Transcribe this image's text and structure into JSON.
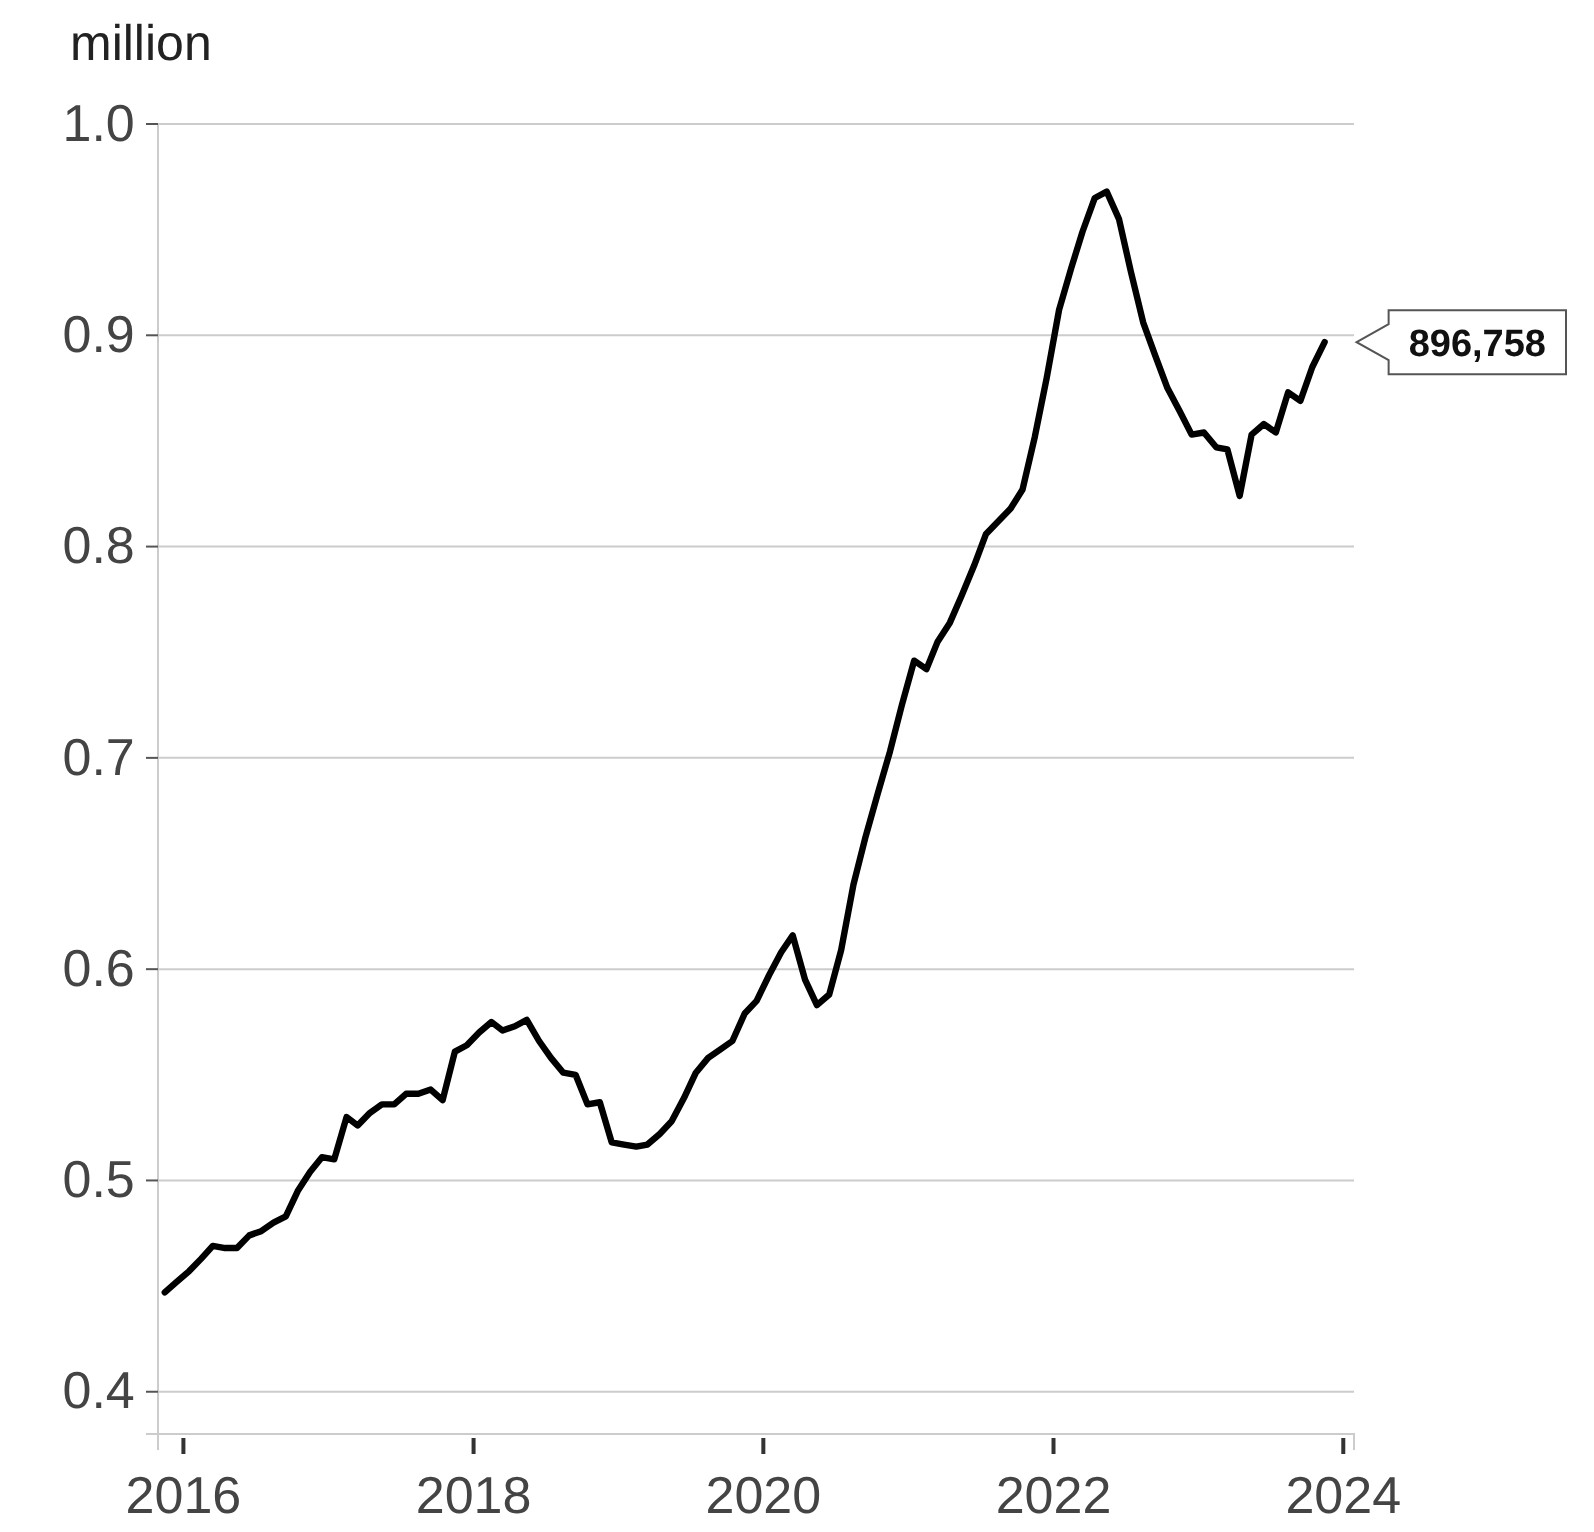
{
  "chart_data": {
    "type": "line",
    "ylabel": "million",
    "x": [
      "2015-11-15",
      "2015-12-15",
      "2016-01-15",
      "2016-02-15",
      "2016-03-15",
      "2016-04-15",
      "2016-05-15",
      "2016-06-15",
      "2016-07-15",
      "2016-08-15",
      "2016-09-15",
      "2016-10-15",
      "2016-11-15",
      "2016-12-15",
      "2017-01-15",
      "2017-02-15",
      "2017-03-15",
      "2017-04-15",
      "2017-05-15",
      "2017-06-15",
      "2017-07-15",
      "2017-08-15",
      "2017-09-15",
      "2017-10-15",
      "2017-11-15",
      "2017-12-15",
      "2018-01-15",
      "2018-02-15",
      "2018-03-15",
      "2018-04-15",
      "2018-05-15",
      "2018-06-15",
      "2018-07-15",
      "2018-08-15",
      "2018-09-15",
      "2018-10-15",
      "2018-11-15",
      "2018-12-15",
      "2019-01-15",
      "2019-02-15",
      "2019-03-15",
      "2019-04-15",
      "2019-05-15",
      "2019-06-15",
      "2019-07-15",
      "2019-08-15",
      "2019-09-15",
      "2019-10-15",
      "2019-11-15",
      "2019-12-15",
      "2020-01-15",
      "2020-02-15",
      "2020-03-15",
      "2020-04-15",
      "2020-05-15",
      "2020-06-15",
      "2020-07-15",
      "2020-08-15",
      "2020-09-15",
      "2020-10-15",
      "2020-11-15",
      "2020-12-15",
      "2021-01-15",
      "2021-02-15",
      "2021-03-15",
      "2021-04-15",
      "2021-05-15",
      "2021-06-15",
      "2021-07-15",
      "2021-08-15",
      "2021-09-15",
      "2021-10-15",
      "2021-11-15",
      "2021-12-15",
      "2022-01-15",
      "2022-02-15",
      "2022-03-15",
      "2022-04-15",
      "2022-05-15",
      "2022-06-15",
      "2022-07-15",
      "2022-08-15",
      "2022-09-15",
      "2022-10-15",
      "2022-11-15",
      "2022-12-15",
      "2023-01-15",
      "2023-02-15",
      "2023-03-15",
      "2023-04-15",
      "2023-05-15",
      "2023-06-15",
      "2023-07-15",
      "2023-08-15",
      "2023-09-15",
      "2023-10-15",
      "2023-11-15"
    ],
    "series": [
      {
        "color": "#000000",
        "values": [
          0.447,
          0.452,
          0.457,
          0.463,
          0.469,
          0.468,
          0.468,
          0.474,
          0.476,
          0.48,
          0.483,
          0.495,
          0.504,
          0.511,
          0.51,
          0.53,
          0.526,
          0.532,
          0.536,
          0.536,
          0.541,
          0.541,
          0.543,
          0.538,
          0.561,
          0.564,
          0.57,
          0.575,
          0.571,
          0.573,
          0.576,
          0.566,
          0.558,
          0.551,
          0.55,
          0.536,
          0.537,
          0.518,
          0.517,
          0.516,
          0.517,
          0.522,
          0.528,
          0.539,
          0.551,
          0.558,
          0.562,
          0.566,
          0.579,
          0.585,
          0.597,
          0.608,
          0.616,
          0.595,
          0.583,
          0.588,
          0.609,
          0.64,
          0.663,
          0.683,
          0.703,
          0.725,
          0.746,
          0.742,
          0.755,
          0.764,
          0.777,
          0.791,
          0.806,
          0.812,
          0.818,
          0.827,
          0.852,
          0.88,
          0.912,
          0.932,
          0.949,
          0.965,
          0.968,
          0.955,
          0.93,
          0.906,
          0.89,
          0.875,
          0.864,
          0.853,
          0.854,
          0.847,
          0.846,
          0.824,
          0.853,
          0.858,
          0.854,
          0.873,
          0.869,
          0.885,
          0.896758
        ]
      }
    ],
    "xlim": [
      "2015-10-29",
      "2024-01-28"
    ],
    "xticks": [
      {
        "value": "2016-01-01",
        "label": "2016"
      },
      {
        "value": "2018-01-01",
        "label": "2018"
      },
      {
        "value": "2020-01-01",
        "label": "2020"
      },
      {
        "value": "2022-01-01",
        "label": "2022"
      },
      {
        "value": "2024-01-01",
        "label": "2024"
      }
    ],
    "ylim": [
      0.38,
      1.0
    ],
    "yticks": [
      0.4,
      0.5,
      0.6,
      0.7,
      0.8,
      0.9,
      {
        "value": 1,
        "label": "1.0"
      }
    ],
    "grid": "y",
    "marker": "none",
    "line_style": "solid",
    "annotations": [
      {
        "text": "896,758",
        "x": "2023-11-15",
        "y": 0.896758
      }
    ]
  }
}
